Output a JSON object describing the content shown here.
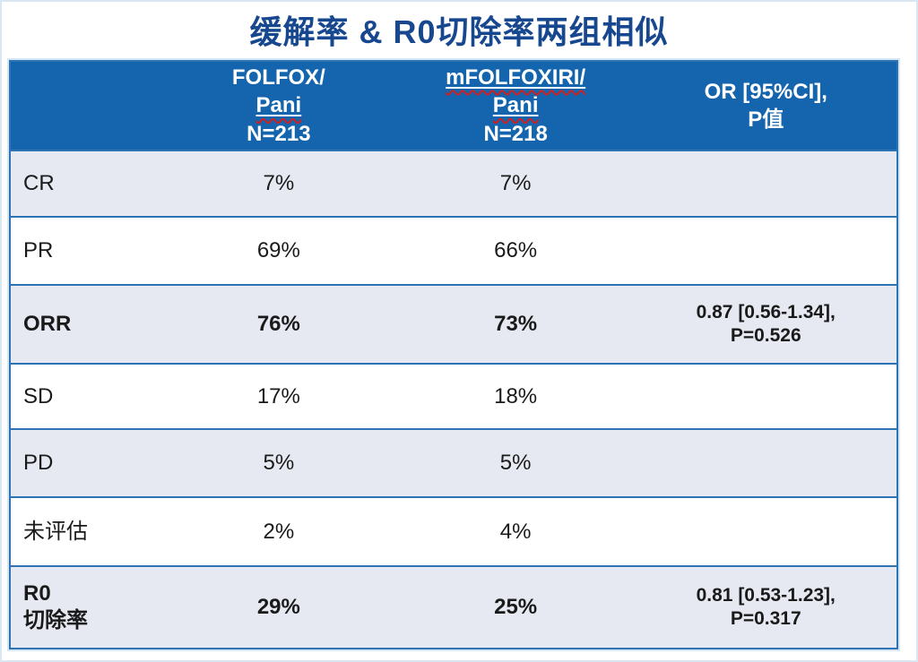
{
  "title": "缓解率 & R0切除率两组相似",
  "colors": {
    "title_text": "#17478e",
    "header_bg": "#1565ae",
    "row_alt_bg": "#e6e9f2",
    "table_border": "#2e74b5",
    "spellcheck_underline": "#cc1f1f",
    "header_text": "#ffffff"
  },
  "table": {
    "header": {
      "empty": "",
      "folfox": {
        "line1": "FOLFOX/",
        "line2": "Pani",
        "line3": "N=213"
      },
      "mfolfoxiri": {
        "line1": "mFOLFOXIRI/",
        "line2": "Pani",
        "line3": "N=218"
      },
      "or_ci": "OR [95%CI],\nP值"
    },
    "rows": [
      {
        "label": "CR",
        "folfox": "7%",
        "mfolfoxiri": "7%",
        "or_p": ""
      },
      {
        "label": "PR",
        "folfox": "69%",
        "mfolfoxiri": "66%",
        "or_p": ""
      },
      {
        "label": "ORR",
        "folfox": "76%",
        "mfolfoxiri": "73%",
        "or_p": "0.87 [0.56-1.34],\nP=0.526"
      },
      {
        "label": "SD",
        "folfox": "17%",
        "mfolfoxiri": "18%",
        "or_p": ""
      },
      {
        "label": "PD",
        "folfox": "5%",
        "mfolfoxiri": "5%",
        "or_p": ""
      },
      {
        "label": "未评估",
        "folfox": "2%",
        "mfolfoxiri": "4%",
        "or_p": ""
      },
      {
        "label": "R0\n切除率",
        "folfox": "29%",
        "mfolfoxiri": "25%",
        "or_p": "0.81 [0.53-1.23],\nP=0.317"
      }
    ]
  },
  "chart_data": {
    "type": "table",
    "title": "缓解率 & R0切除率两组相似",
    "columns": [
      "",
      "FOLFOX/Pani N=213",
      "mFOLFOXIRI/Pani N=218",
      "OR [95%CI], P值"
    ],
    "rows": [
      [
        "CR",
        "7%",
        "7%",
        ""
      ],
      [
        "PR",
        "69%",
        "66%",
        ""
      ],
      [
        "ORR",
        "76%",
        "73%",
        "0.87 [0.56-1.34], P=0.526"
      ],
      [
        "SD",
        "17%",
        "18%",
        ""
      ],
      [
        "PD",
        "5%",
        "5%",
        ""
      ],
      [
        "未评估",
        "2%",
        "4%",
        ""
      ],
      [
        "R0切除率",
        "29%",
        "25%",
        "0.81 [0.53-1.23], P=0.317"
      ]
    ]
  }
}
